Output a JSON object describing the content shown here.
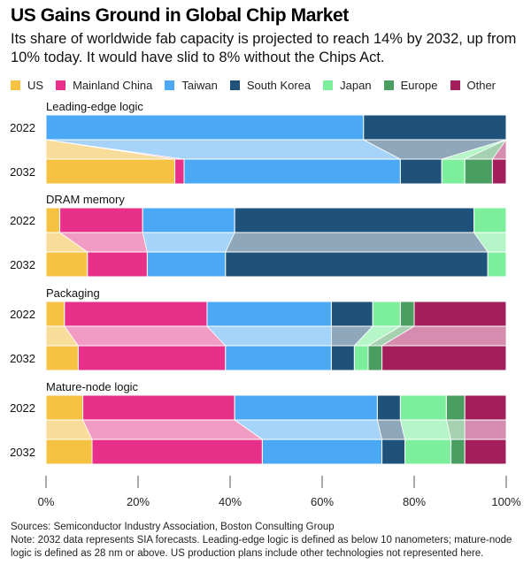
{
  "header": {
    "title": "US Gains Ground in Global Chip Market",
    "subtitle": "Its share of worldwide fab capacity is projected to reach 14% by 2032, up from 10% today. It would have slid to 8% without the Chips Act."
  },
  "legend": [
    {
      "label": "US",
      "color": "#f5c242"
    },
    {
      "label": "Mainland China",
      "color": "#e8308a"
    },
    {
      "label": "Taiwan",
      "color": "#4aa8f5"
    },
    {
      "label": "South Korea",
      "color": "#1f527a"
    },
    {
      "label": "Japan",
      "color": "#7dee9c"
    },
    {
      "label": "Europe",
      "color": "#4a9e62"
    },
    {
      "label": "Other",
      "color": "#a31f5c"
    }
  ],
  "chart_data": {
    "type": "bar",
    "subtype": "stacked-100-percent-horizontal-with-connectors",
    "title": "US Gains Ground in Global Chip Market",
    "series_names": [
      "US",
      "Mainland China",
      "Taiwan",
      "South Korea",
      "Japan",
      "Europe",
      "Other"
    ],
    "colors": [
      "#f5c242",
      "#e8308a",
      "#4aa8f5",
      "#1f527a",
      "#7dee9c",
      "#4a9e62",
      "#a31f5c"
    ],
    "connector_colors": [
      "#f8dc9a",
      "#f29cc4",
      "#a5d3fa",
      "#8fa7bb",
      "#b5f5c8",
      "#a6d1b0",
      "#d68cae"
    ],
    "groups": [
      {
        "name": "Leading-edge logic",
        "years": [
          {
            "year": "2022",
            "values": [
              0,
              0,
              69,
              31,
              0,
              0,
              0
            ]
          },
          {
            "year": "2032",
            "values": [
              28,
              2,
              47,
              9,
              5,
              6,
              3
            ]
          }
        ]
      },
      {
        "name": "DRAM memory",
        "years": [
          {
            "year": "2022",
            "values": [
              3,
              18,
              20,
              52,
              7,
              0,
              0
            ]
          },
          {
            "year": "2032",
            "values": [
              9,
              13,
              17,
              57,
              4,
              0,
              0
            ]
          }
        ]
      },
      {
        "name": "Packaging",
        "years": [
          {
            "year": "2022",
            "values": [
              4,
              31,
              27,
              9,
              6,
              3,
              20
            ]
          },
          {
            "year": "2032",
            "values": [
              7,
              32,
              23,
              5,
              3,
              3,
              27
            ]
          }
        ]
      },
      {
        "name": "Mature-node logic",
        "years": [
          {
            "year": "2022",
            "values": [
              8,
              33,
              31,
              5,
              10,
              4,
              9
            ]
          },
          {
            "year": "2032",
            "values": [
              10,
              37,
              26,
              5,
              10,
              3,
              9
            ]
          }
        ]
      }
    ],
    "xaxis": {
      "range": [
        0,
        100
      ],
      "ticks": [
        0,
        20,
        40,
        60,
        80,
        100
      ],
      "tick_labels": [
        "0%",
        "20%",
        "40%",
        "60%",
        "80%",
        "100%"
      ]
    },
    "xlabel": "",
    "ylabel": "",
    "legend_position": "top",
    "grid": false
  },
  "footer": {
    "sources": "Sources: Semiconductor Industry Association, Boston Consulting Group",
    "note": "Note: 2032 data represents SIA forecasts. Leading-edge logic is defined as below 10 nanometers; mature-node logic is defined as 28 nm or above. US production plans include other technologies not represented here."
  }
}
